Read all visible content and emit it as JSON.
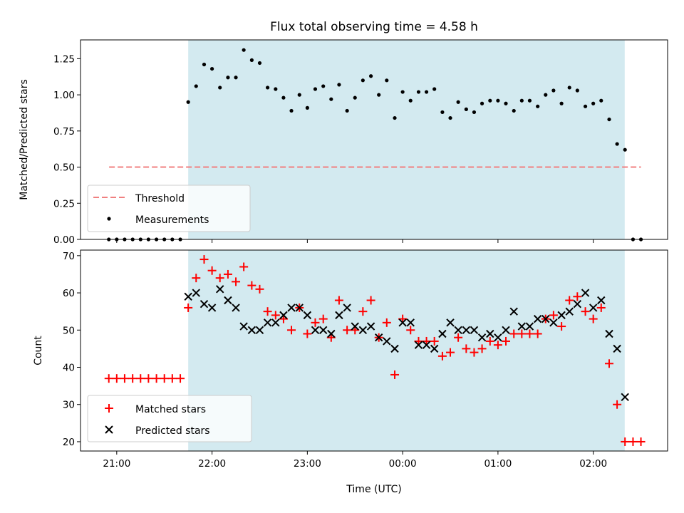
{
  "chart_data": [
    {
      "type": "scatter",
      "title": "Flux total observing time = 4.58 h",
      "xlabel": "",
      "ylabel": "Matched/Predicted stars",
      "ylim": [
        0,
        1.38
      ],
      "yticks": [
        "0.00",
        "0.25",
        "0.50",
        "0.75",
        "1.00",
        "1.25"
      ],
      "shaded_span_utc_hours": [
        21.75,
        26.33
      ],
      "shade_color": "#d3eaf0",
      "threshold": {
        "name": "Threshold",
        "value": 0.5,
        "x_range": [
          20.92,
          26.5
        ],
        "color": "#f08080",
        "style": "dashed"
      },
      "series": [
        {
          "name": "Measurements",
          "marker": "dot",
          "color": "#000000",
          "x": [
            20.917,
            21.0,
            21.083,
            21.167,
            21.25,
            21.333,
            21.417,
            21.5,
            21.583,
            21.667,
            21.75,
            21.833,
            21.917,
            22.0,
            22.083,
            22.167,
            22.25,
            22.333,
            22.417,
            22.5,
            22.583,
            22.667,
            22.75,
            22.833,
            22.917,
            23.0,
            23.083,
            23.167,
            23.25,
            23.333,
            23.417,
            23.5,
            23.583,
            23.667,
            23.75,
            23.833,
            23.917,
            24.0,
            24.083,
            24.167,
            24.25,
            24.333,
            24.417,
            24.5,
            24.583,
            24.667,
            24.75,
            24.833,
            24.917,
            25.0,
            25.083,
            25.167,
            25.25,
            25.333,
            25.417,
            25.5,
            25.583,
            25.667,
            25.75,
            25.833,
            25.917,
            26.0,
            26.083,
            26.167,
            26.25,
            26.333,
            26.417,
            26.5
          ],
          "y": [
            0,
            0,
            0,
            0,
            0,
            0,
            0,
            0,
            0,
            0,
            0.95,
            1.06,
            1.21,
            1.18,
            1.05,
            1.12,
            1.12,
            1.31,
            1.24,
            1.22,
            1.05,
            1.04,
            0.98,
            0.89,
            1.0,
            0.91,
            1.04,
            1.06,
            0.97,
            1.07,
            0.89,
            0.98,
            1.1,
            1.13,
            1.0,
            1.1,
            0.84,
            1.02,
            0.96,
            1.02,
            1.02,
            1.04,
            0.88,
            0.84,
            0.95,
            0.9,
            0.88,
            0.94,
            0.96,
            0.96,
            0.94,
            0.89,
            0.96,
            0.96,
            0.92,
            1.0,
            1.03,
            0.94,
            1.05,
            1.03,
            0.92,
            0.94,
            0.96,
            0.83,
            0.66,
            0.62,
            0,
            0
          ]
        }
      ],
      "legend": {
        "location": "lower-left",
        "entries": [
          "Threshold",
          "Measurements"
        ]
      }
    },
    {
      "type": "scatter",
      "title": "",
      "xlabel": "Time (UTC)",
      "ylabel": "Count",
      "ylim": [
        17.5,
        71.5
      ],
      "yticks": [
        "20",
        "30",
        "40",
        "50",
        "60",
        "70"
      ],
      "xticks": [
        "21:00",
        "22:00",
        "23:00",
        "00:00",
        "01:00",
        "02:00"
      ],
      "xtick_values_utc_hours": [
        21,
        22,
        23,
        24,
        25,
        26
      ],
      "xlim_utc_hours": [
        20.62,
        26.78
      ],
      "series": [
        {
          "name": "Matched stars",
          "marker": "plus",
          "color": "#ff0000",
          "x": [
            20.917,
            21.0,
            21.083,
            21.167,
            21.25,
            21.333,
            21.417,
            21.5,
            21.583,
            21.667,
            21.75,
            21.833,
            21.917,
            22.0,
            22.083,
            22.167,
            22.25,
            22.333,
            22.417,
            22.5,
            22.583,
            22.667,
            22.75,
            22.833,
            22.917,
            23.0,
            23.083,
            23.167,
            23.25,
            23.333,
            23.417,
            23.5,
            23.583,
            23.667,
            23.75,
            23.833,
            23.917,
            24.0,
            24.083,
            24.167,
            24.25,
            24.333,
            24.417,
            24.5,
            24.583,
            24.667,
            24.75,
            24.833,
            24.917,
            25.0,
            25.083,
            25.167,
            25.25,
            25.333,
            25.417,
            25.5,
            25.583,
            25.667,
            25.75,
            25.833,
            25.917,
            26.0,
            26.083,
            26.167,
            26.25,
            26.333,
            26.417,
            26.5
          ],
          "y": [
            37,
            37,
            37,
            37,
            37,
            37,
            37,
            37,
            37,
            37,
            56,
            64,
            69,
            66,
            64,
            65,
            63,
            67,
            62,
            61,
            55,
            54,
            53,
            50,
            56,
            49,
            52,
            53,
            48,
            58,
            50,
            50,
            55,
            58,
            48,
            52,
            38,
            53,
            50,
            47,
            47,
            47,
            43,
            44,
            48,
            45,
            44,
            45,
            47,
            46,
            47,
            49,
            49,
            49,
            49,
            53,
            54,
            51,
            58,
            59,
            55,
            53,
            56,
            41,
            30,
            20,
            20,
            20
          ]
        },
        {
          "name": "Predicted stars",
          "marker": "x",
          "color": "#000000",
          "x": [
            21.75,
            21.833,
            21.917,
            22.0,
            22.083,
            22.167,
            22.25,
            22.333,
            22.417,
            22.5,
            22.583,
            22.667,
            22.75,
            22.833,
            22.917,
            23.0,
            23.083,
            23.167,
            23.25,
            23.333,
            23.417,
            23.5,
            23.583,
            23.667,
            23.75,
            23.833,
            23.917,
            24.0,
            24.083,
            24.167,
            24.25,
            24.333,
            24.417,
            24.5,
            24.583,
            24.667,
            24.75,
            24.833,
            24.917,
            25.0,
            25.083,
            25.167,
            25.25,
            25.333,
            25.417,
            25.5,
            25.583,
            25.667,
            25.75,
            25.833,
            25.917,
            26.0,
            26.083,
            26.167,
            26.25,
            26.333
          ],
          "y": [
            59,
            60,
            57,
            56,
            61,
            58,
            56,
            51,
            50,
            50,
            52,
            52,
            54,
            56,
            56,
            54,
            50,
            50,
            49,
            54,
            56,
            51,
            50,
            51,
            48,
            47,
            45,
            52,
            52,
            46,
            46,
            45,
            49,
            52,
            50,
            50,
            50,
            48,
            49,
            48,
            50,
            55,
            51,
            51,
            53,
            53,
            52,
            54,
            55,
            57,
            60,
            56,
            58,
            49,
            45,
            32
          ]
        }
      ],
      "legend": {
        "location": "lower-left",
        "entries": [
          "Matched stars",
          "Predicted stars"
        ]
      }
    }
  ]
}
